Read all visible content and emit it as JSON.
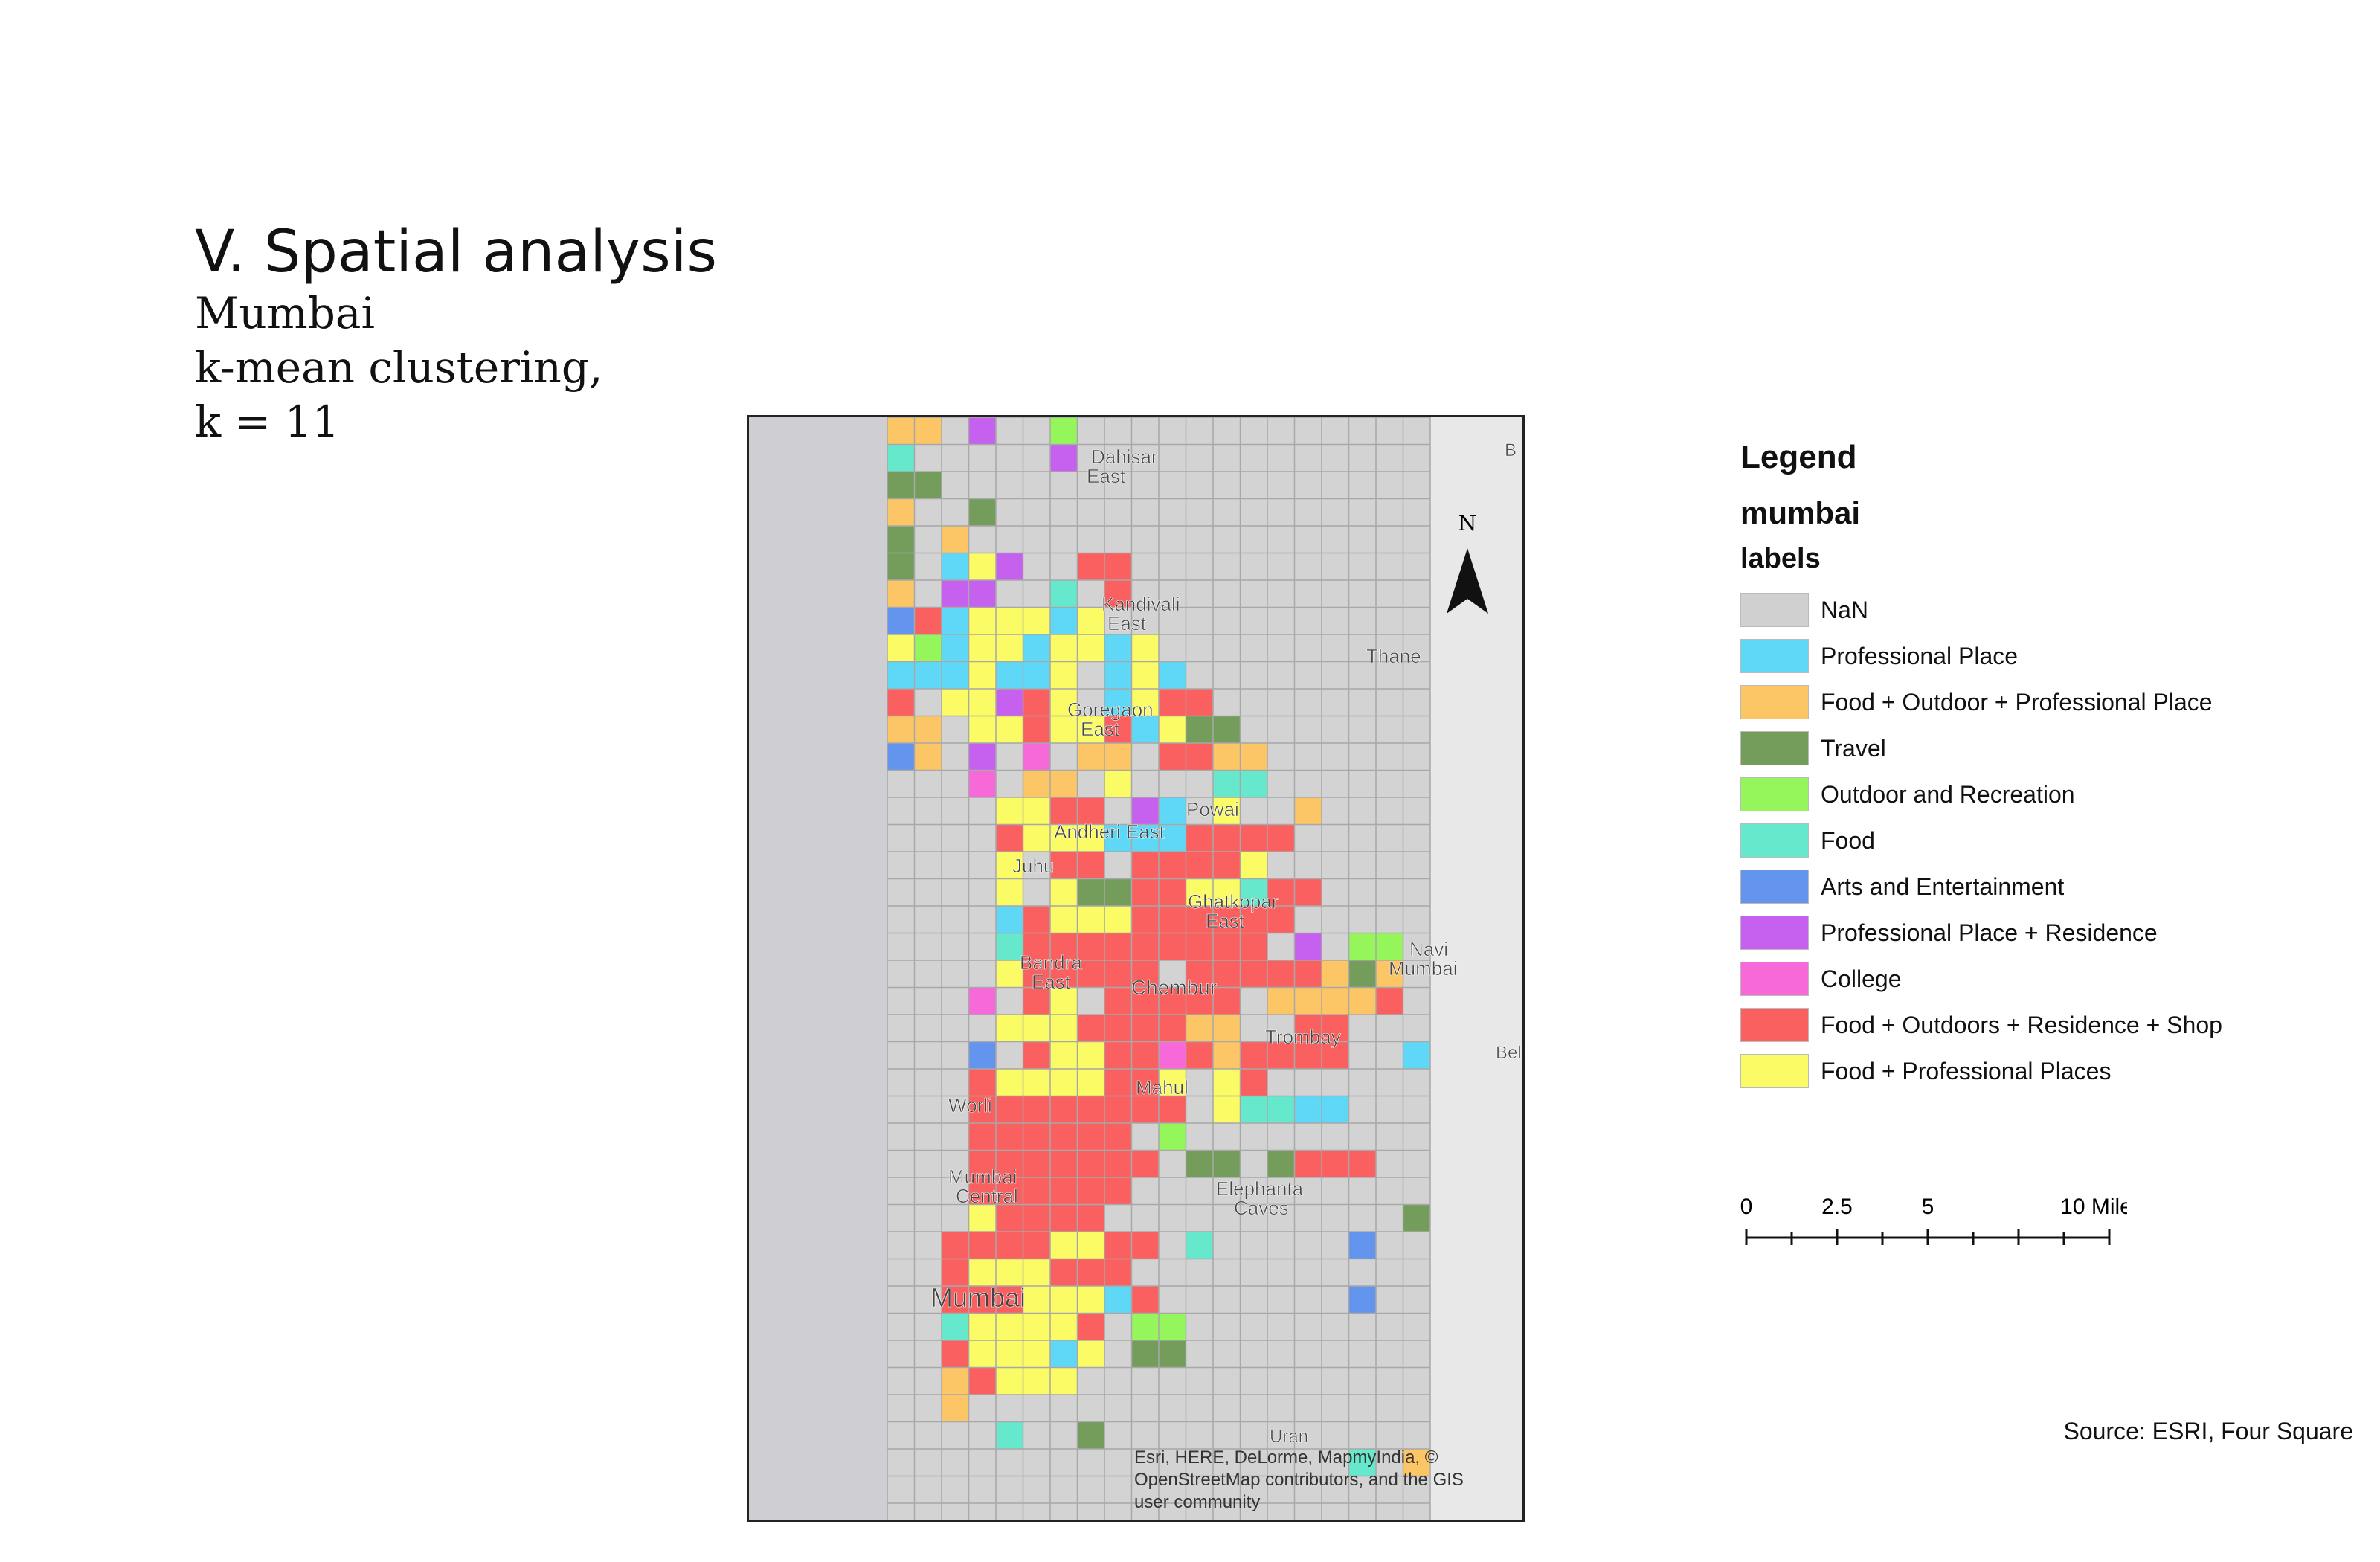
{
  "slide": {
    "title": "V. Spatial analysis",
    "subtitle_1": "Mumbai",
    "subtitle_2": "k-mean clustering,",
    "subtitle_3": "k = 11"
  },
  "map": {
    "place_labels": [
      {
        "text": "Dahisar"
      },
      {
        "text": "East"
      },
      {
        "text": "Kandivali"
      },
      {
        "text": "East"
      },
      {
        "text": "Thane"
      },
      {
        "text": "Goregaon"
      },
      {
        "text": "East"
      },
      {
        "text": "Powai"
      },
      {
        "text": "Andheri East"
      },
      {
        "text": "Juhu"
      },
      {
        "text": "Ghatkopar"
      },
      {
        "text": "East"
      },
      {
        "text": "Navi"
      },
      {
        "text": "Mumbai"
      },
      {
        "text": "Bandra"
      },
      {
        "text": "East"
      },
      {
        "text": "Chembur"
      },
      {
        "text": "Trombay"
      },
      {
        "text": "Mahul"
      },
      {
        "text": "Worli"
      },
      {
        "text": "Mumbai"
      },
      {
        "text": "Central"
      },
      {
        "text": "Elephanta"
      },
      {
        "text": "Caves"
      },
      {
        "text": "Mumbai"
      },
      {
        "text": "Uran"
      },
      {
        "text": "Bel"
      },
      {
        "text": "B"
      }
    ],
    "north_label": "N",
    "attribution_1": "Esri, HERE, DeLorme, MapmyIndia, ©",
    "attribution_2": "OpenStreetMap contributors, and the GIS",
    "attribution_3": "user community"
  },
  "legend": {
    "title": "Legend",
    "layer": "mumbai",
    "field": "labels",
    "items": [
      {
        "label": "NaN",
        "color": "#d0d0d0"
      },
      {
        "label": "Professional Place",
        "color": "#5fd8f8"
      },
      {
        "label": "Food + Outdoor + Professional Place",
        "color": "#fcc566"
      },
      {
        "label": "Travel",
        "color": "#749d5c"
      },
      {
        "label": "Outdoor and Recreation",
        "color": "#95f65c"
      },
      {
        "label": "Food",
        "color": "#66e8cc"
      },
      {
        "label": "Arts and Entertainment",
        "color": "#6395ef"
      },
      {
        "label": "Professional Place + Residence",
        "color": "#c660ee"
      },
      {
        "label": "College",
        "color": "#f769d9"
      },
      {
        "label": "Food + Outdoors + Residence + Shop",
        "color": "#fb6060"
      },
      {
        "label": "Food + Professional Places",
        "color": "#fbfb66"
      }
    ]
  },
  "scale": {
    "labels": [
      "0",
      "2.5",
      "5",
      "10 Miles"
    ]
  },
  "source": "Source: ESRI, Four Square"
}
